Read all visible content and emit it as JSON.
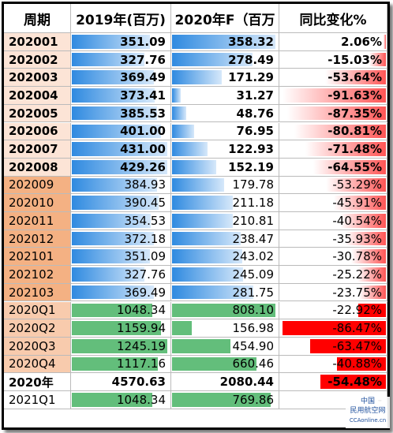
{
  "table": {
    "header": [
      "周期",
      "2019年(百万)",
      "2020年F（百万",
      "同比变化%"
    ],
    "rows": [
      [
        "202001",
        "351.09",
        "358.32",
        "2.06%"
      ],
      [
        "202002",
        "327.76",
        "278.49",
        "-15.03%"
      ],
      [
        "202003",
        "369.49",
        "171.29",
        "-53.64%"
      ],
      [
        "202004",
        "373.41",
        "31.27",
        "-91.63%"
      ],
      [
        "202005",
        "385.53",
        "48.76",
        "-87.35%"
      ],
      [
        "202006",
        "401.00",
        "76.95",
        "-80.81%"
      ],
      [
        "202007",
        "431.00",
        "122.93",
        "-71.48%"
      ],
      [
        "202008",
        "429.26",
        "152.19",
        "-64.55%"
      ],
      [
        "202009",
        "384.93",
        "179.78",
        "-53.29%"
      ],
      [
        "202010",
        "390.45",
        "211.18",
        "-45.91%"
      ],
      [
        "202011",
        "354.53",
        "210.81",
        "-40.54%"
      ],
      [
        "202012",
        "372.18",
        "238.47",
        "-35.93%"
      ],
      [
        "202101",
        "351.09",
        "243.02",
        "-30.78%"
      ],
      [
        "202102",
        "327.76",
        "245.09",
        "-25.22%"
      ],
      [
        "202103",
        "369.49",
        "281.75",
        "-23.75%"
      ],
      [
        "2020Q1",
        "1048.34",
        "808.10",
        "-22.92%"
      ],
      [
        "2020Q2",
        "1159.94",
        "156.98",
        "-86.47%"
      ],
      [
        "2020Q3",
        "1245.19",
        "454.90",
        "-63.47%"
      ],
      [
        "2020Q4",
        "1117.16",
        "660.46",
        "-40.88%"
      ],
      [
        "2020年",
        "4570.63",
        "2080.44",
        "-54.48%"
      ],
      [
        "2021Q1",
        "1048.34",
        "769.86",
        "-"
      ]
    ]
  },
  "watermark": {
    "line1": "中国",
    "line2": "民用航空网",
    "line3": "CCAonline.cn"
  }
}
